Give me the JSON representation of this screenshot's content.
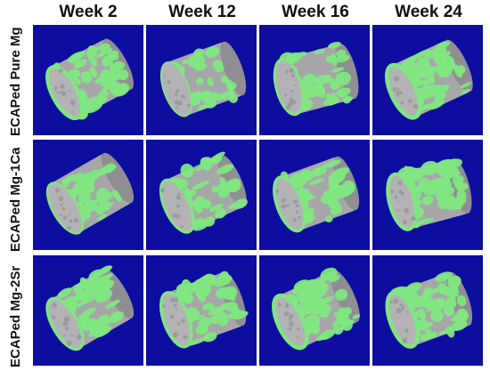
{
  "columns": [
    "Week 2",
    "Week 12",
    "Week 16",
    "Week 24"
  ],
  "rows": [
    "ECAPed Pure Mg",
    "ECAPed Mg-1Ca",
    "ECAPed Mg-2Sr"
  ],
  "colors": {
    "panel_background": "#0d0da0",
    "implant_grey": "#a7a7aa",
    "new_bone_green": "#7fe77f"
  }
}
